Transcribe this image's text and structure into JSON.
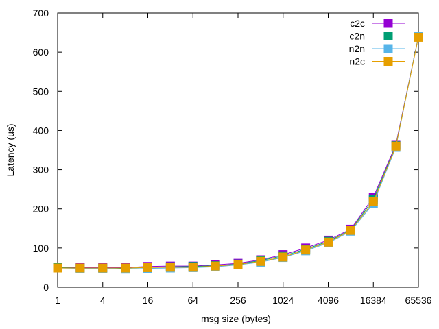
{
  "chart_data": {
    "type": "line",
    "title": "",
    "xlabel": "msg size (bytes)",
    "ylabel": "Latency (us)",
    "x_scale": "log2",
    "xlim": [
      1,
      65536
    ],
    "ylim": [
      0,
      700
    ],
    "x_ticks": [
      1,
      4,
      16,
      64,
      256,
      1024,
      4096,
      16384,
      65536
    ],
    "x_tick_labels": [
      "1",
      "4",
      "16",
      "64",
      "256",
      "1024",
      "4096",
      "16384",
      "65536"
    ],
    "y_ticks": [
      0,
      100,
      200,
      300,
      400,
      500,
      600,
      700
    ],
    "y_tick_labels": [
      "0",
      "100",
      "200",
      "300",
      "400",
      "500",
      "600",
      "700"
    ],
    "grid": false,
    "legend_position": "top-right",
    "x": [
      1,
      2,
      4,
      8,
      16,
      32,
      64,
      128,
      256,
      512,
      1024,
      2048,
      4096,
      8192,
      16384,
      32768,
      65536
    ],
    "series": [
      {
        "name": "c2c",
        "color": "#9400d3",
        "marker": "square",
        "values": [
          50,
          50,
          50,
          50,
          53,
          54,
          54,
          57,
          61,
          70,
          83,
          100,
          120,
          148,
          230,
          364,
          640
        ]
      },
      {
        "name": "c2n",
        "color": "#009e73",
        "marker": "square",
        "values": [
          50,
          49,
          49,
          48,
          51,
          52,
          53,
          55,
          59,
          68,
          80,
          97,
          117,
          146,
          224,
          361,
          640
        ]
      },
      {
        "name": "n2n",
        "color": "#56b4e9",
        "marker": "square",
        "values": [
          49,
          48,
          48,
          46,
          48,
          49,
          50,
          52,
          57,
          64,
          76,
          93,
          113,
          143,
          214,
          357,
          640
        ]
      },
      {
        "name": "n2c",
        "color": "#e69f00",
        "marker": "square",
        "values": [
          49,
          49,
          49,
          49,
          50,
          51,
          51,
          54,
          58,
          66,
          77,
          95,
          115,
          145,
          218,
          360,
          638
        ]
      }
    ]
  }
}
